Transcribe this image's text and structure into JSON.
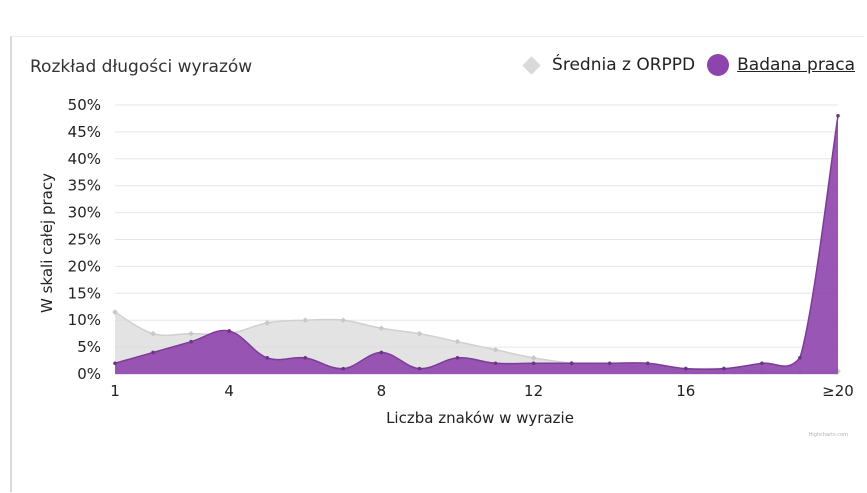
{
  "chart_data": {
    "type": "area",
    "title": "Rozkład długości wyrazów",
    "xlabel": "Liczba znaków w wyrazie",
    "ylabel": "W skali całej pracy",
    "x": [
      1,
      2,
      3,
      4,
      5,
      6,
      7,
      8,
      9,
      10,
      11,
      12,
      13,
      14,
      15,
      16,
      17,
      18,
      19,
      20
    ],
    "x_tick_values": [
      1,
      4,
      8,
      12,
      16,
      20
    ],
    "x_tick_labels": [
      "1",
      "4",
      "8",
      "12",
      "16",
      "≥20"
    ],
    "ylim": [
      0,
      50
    ],
    "y_ticks": [
      "0%",
      "5%",
      "10%",
      "15%",
      "20%",
      "25%",
      "30%",
      "35%",
      "40%",
      "45%",
      "50%"
    ],
    "grid": true,
    "legend_position": "top-right",
    "series": [
      {
        "name": "Średnia z ORPPD",
        "color": "#d9d9d9",
        "marker": "diamond",
        "values": [
          11.5,
          7.5,
          7.5,
          7.5,
          9.5,
          10,
          10,
          8.5,
          7.5,
          6,
          4.5,
          3,
          2,
          1.5,
          1.5,
          1,
          1,
          0.5,
          0.5,
          0.5
        ]
      },
      {
        "name": "Badana praca",
        "color": "#8e44ad",
        "marker": "circle",
        "active": true,
        "values": [
          2,
          4,
          6,
          8,
          3,
          3,
          1,
          4,
          1,
          3,
          2,
          2,
          2,
          2,
          2,
          1,
          1,
          2,
          3,
          48
        ]
      }
    ],
    "credit": "Highcharts.com"
  }
}
